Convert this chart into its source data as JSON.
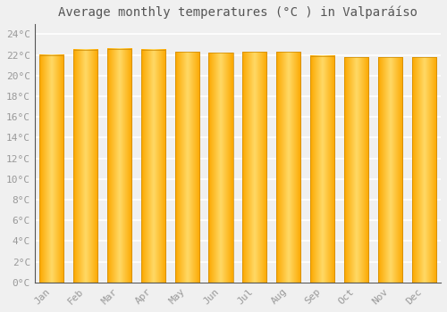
{
  "title": "Average monthly temperatures (°C ) in Valparáíso",
  "months": [
    "Jan",
    "Feb",
    "Mar",
    "Apr",
    "May",
    "Jun",
    "Jul",
    "Aug",
    "Sep",
    "Oct",
    "Nov",
    "Dec"
  ],
  "values": [
    22.0,
    22.5,
    22.6,
    22.5,
    22.3,
    22.2,
    22.3,
    22.3,
    21.9,
    21.8,
    21.8,
    21.8
  ],
  "bar_color_main": "#FCA800",
  "bar_color_light": "#FFD966",
  "background_color": "#f0f0f0",
  "plot_bg_color": "#f0f0f0",
  "grid_color": "#ffffff",
  "ylim": [
    0,
    25
  ],
  "yticks": [
    0,
    2,
    4,
    6,
    8,
    10,
    12,
    14,
    16,
    18,
    20,
    22,
    24
  ],
  "title_fontsize": 10,
  "tick_fontsize": 8,
  "tick_color": "#999999",
  "title_color": "#555555"
}
